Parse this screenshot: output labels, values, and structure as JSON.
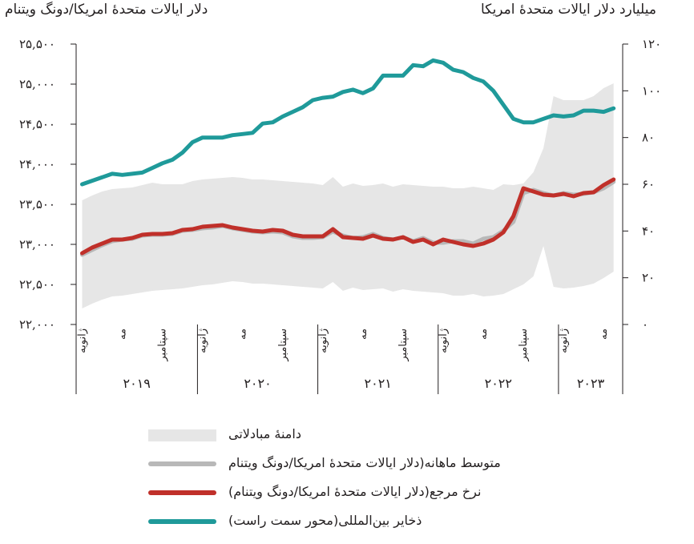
{
  "chart_data": {
    "type": "line",
    "left_axis_title": "دلار ایالات متحدهٔ امریکا/دونگ ویتنام",
    "right_axis_title": "میلیارد دلار ایالات متحدهٔ امریکا",
    "left_axis": {
      "min": 22000,
      "max": 25500,
      "ticks": [
        22000,
        22500,
        23000,
        23500,
        24000,
        24500,
        25000,
        25500
      ],
      "tick_labels": [
        "۲۲,۰۰۰",
        "۲۲,۵۰۰",
        "۲۳,۰۰۰",
        "۲۳,۵۰۰",
        "۲۴,۰۰۰",
        "۲۴,۵۰۰",
        "۲۵,۰۰۰",
        "۲۵,۵۰۰"
      ]
    },
    "right_axis": {
      "min": 0,
      "max": 120,
      "ticks": [
        0,
        20,
        40,
        60,
        80,
        100,
        120
      ],
      "tick_labels": [
        "۰",
        "۲۰",
        "۴۰",
        "۶۰",
        "۸۰",
        "۱۰۰",
        "۱۲۰"
      ]
    },
    "x_periods": 54,
    "month_labels": [
      {
        "index": 0,
        "label": "ژانویه"
      },
      {
        "index": 4,
        "label": "مه"
      },
      {
        "index": 8,
        "label": "سپتامبر"
      },
      {
        "index": 12,
        "label": "ژانویه"
      },
      {
        "index": 16,
        "label": "مه"
      },
      {
        "index": 20,
        "label": "سپتامبر"
      },
      {
        "index": 24,
        "label": "ژانویه"
      },
      {
        "index": 28,
        "label": "مه"
      },
      {
        "index": 32,
        "label": "سپتامبر"
      },
      {
        "index": 36,
        "label": "ژانویه"
      },
      {
        "index": 40,
        "label": "مه"
      },
      {
        "index": 44,
        "label": "سپتامبر"
      },
      {
        "index": 48,
        "label": "ژانویه"
      },
      {
        "index": 52,
        "label": "مه"
      }
    ],
    "years": [
      {
        "label": "۲۰۱۹",
        "start": 0,
        "end": 12
      },
      {
        "label": "۲۰۲۰",
        "start": 12,
        "end": 24
      },
      {
        "label": "۲۰۲۱",
        "start": 24,
        "end": 36
      },
      {
        "label": "۲۰۲۲",
        "start": 36,
        "end": 48
      },
      {
        "label": "۲۰۲۳",
        "start": 48,
        "end": 54
      }
    ],
    "series": [
      {
        "name": "دامنهٔ مبادلاتی",
        "kind": "band",
        "axis": "left",
        "color": "#e6e6e6",
        "x": [
          0,
          1,
          2,
          3,
          4,
          5,
          6,
          7,
          8,
          9,
          10,
          11,
          12,
          13,
          14,
          15,
          16,
          17,
          18,
          19,
          20,
          21,
          22,
          23,
          24,
          25,
          26,
          27,
          28,
          29,
          30,
          31,
          32,
          33,
          34,
          35,
          36,
          37,
          38,
          39,
          40,
          41,
          42,
          43,
          44,
          45,
          46,
          47,
          48,
          49,
          50,
          51,
          52,
          53
        ],
        "upper": [
          23550,
          23610,
          23660,
          23690,
          23700,
          23710,
          23740,
          23770,
          23750,
          23750,
          23750,
          23790,
          23810,
          23820,
          23830,
          23840,
          23830,
          23810,
          23810,
          23800,
          23790,
          23780,
          23770,
          23760,
          23740,
          23840,
          23720,
          23760,
          23730,
          23740,
          23760,
          23720,
          23750,
          23740,
          23730,
          23720,
          23720,
          23700,
          23700,
          23720,
          23700,
          23680,
          23750,
          23740,
          23760,
          23900,
          24200,
          24850,
          24800,
          24800,
          24800,
          24850,
          24950,
          25010
        ],
        "lower": [
          22200,
          22260,
          22310,
          22350,
          22360,
          22380,
          22400,
          22420,
          22430,
          22440,
          22450,
          22470,
          22490,
          22500,
          22520,
          22540,
          22530,
          22510,
          22510,
          22500,
          22490,
          22480,
          22470,
          22460,
          22450,
          22530,
          22420,
          22460,
          22430,
          22440,
          22450,
          22410,
          22440,
          22420,
          22410,
          22400,
          22390,
          22360,
          22360,
          22380,
          22350,
          22360,
          22380,
          22440,
          22500,
          22600,
          22980,
          22470,
          22450,
          22460,
          22480,
          22510,
          22580,
          22660
        ]
      },
      {
        "name": "متوسط ماهانه(دلار ایالات متحدهٔ امریکا/دونگ ویتنام",
        "kind": "line",
        "axis": "left",
        "color": "#b8b8b8",
        "values": [
          22870,
          22930,
          22990,
          23040,
          23060,
          23070,
          23110,
          23120,
          23120,
          23130,
          23170,
          23180,
          23200,
          23210,
          23230,
          23200,
          23180,
          23160,
          23150,
          23160,
          23150,
          23100,
          23080,
          23080,
          23090,
          23160,
          23110,
          23080,
          23090,
          23130,
          23080,
          23060,
          23090,
          23040,
          23080,
          23020,
          23020,
          23040,
          23040,
          23010,
          23070,
          23090,
          23170,
          23280,
          23640,
          23680,
          23640,
          23610,
          23640,
          23620,
          23630,
          23650,
          23700,
          23780
        ]
      },
      {
        "name": "نرخ مرجع(دلار ایالات متحدهٔ امریکا/دونگ ویتنام)",
        "kind": "line",
        "axis": "left",
        "color": "#c0302a",
        "values": [
          22890,
          22960,
          23010,
          23060,
          23060,
          23080,
          23120,
          23130,
          23130,
          23140,
          23180,
          23190,
          23220,
          23230,
          23240,
          23210,
          23190,
          23170,
          23160,
          23180,
          23170,
          23120,
          23100,
          23100,
          23100,
          23190,
          23090,
          23080,
          23070,
          23110,
          23070,
          23060,
          23090,
          23030,
          23060,
          23000,
          23060,
          23030,
          23000,
          22980,
          23010,
          23060,
          23150,
          23350,
          23700,
          23660,
          23620,
          23610,
          23630,
          23600,
          23640,
          23650,
          23740,
          23810
        ]
      },
      {
        "name": "ذخایر بین‌المللی(محور سمت راست)",
        "kind": "line",
        "axis": "right",
        "color": "#1f9a9a",
        "values": [
          60,
          61.5,
          63,
          64.5,
          64,
          64.5,
          65,
          67,
          69,
          70.5,
          73.5,
          78,
          80,
          80,
          80,
          81,
          81.5,
          82,
          86,
          86.5,
          89,
          91,
          93,
          96,
          97,
          97.5,
          99.5,
          100.5,
          99,
          101,
          106.5,
          106.5,
          106.5,
          111,
          110.5,
          113,
          112,
          109,
          108,
          105.5,
          104,
          100,
          94,
          88,
          86.5,
          86.5,
          88,
          89.5,
          89,
          89.5,
          91.5,
          91.5,
          91,
          92.5
        ]
      }
    ],
    "legend": [
      {
        "label": "دامنهٔ مبادلاتی",
        "kind": "band",
        "color": "#e6e6e6"
      },
      {
        "label": "متوسط ماهانه(دلار ایالات متحدهٔ امریکا/دونگ ویتنام",
        "kind": "line",
        "color": "#b8b8b8"
      },
      {
        "label": "نرخ مرجع(دلار ایالات متحدهٔ امریکا/دونگ ویتنام)",
        "kind": "line",
        "color": "#c0302a"
      },
      {
        "label": "ذخایر بین‌المللی(محور سمت راست)",
        "kind": "line",
        "color": "#1f9a9a"
      }
    ]
  }
}
